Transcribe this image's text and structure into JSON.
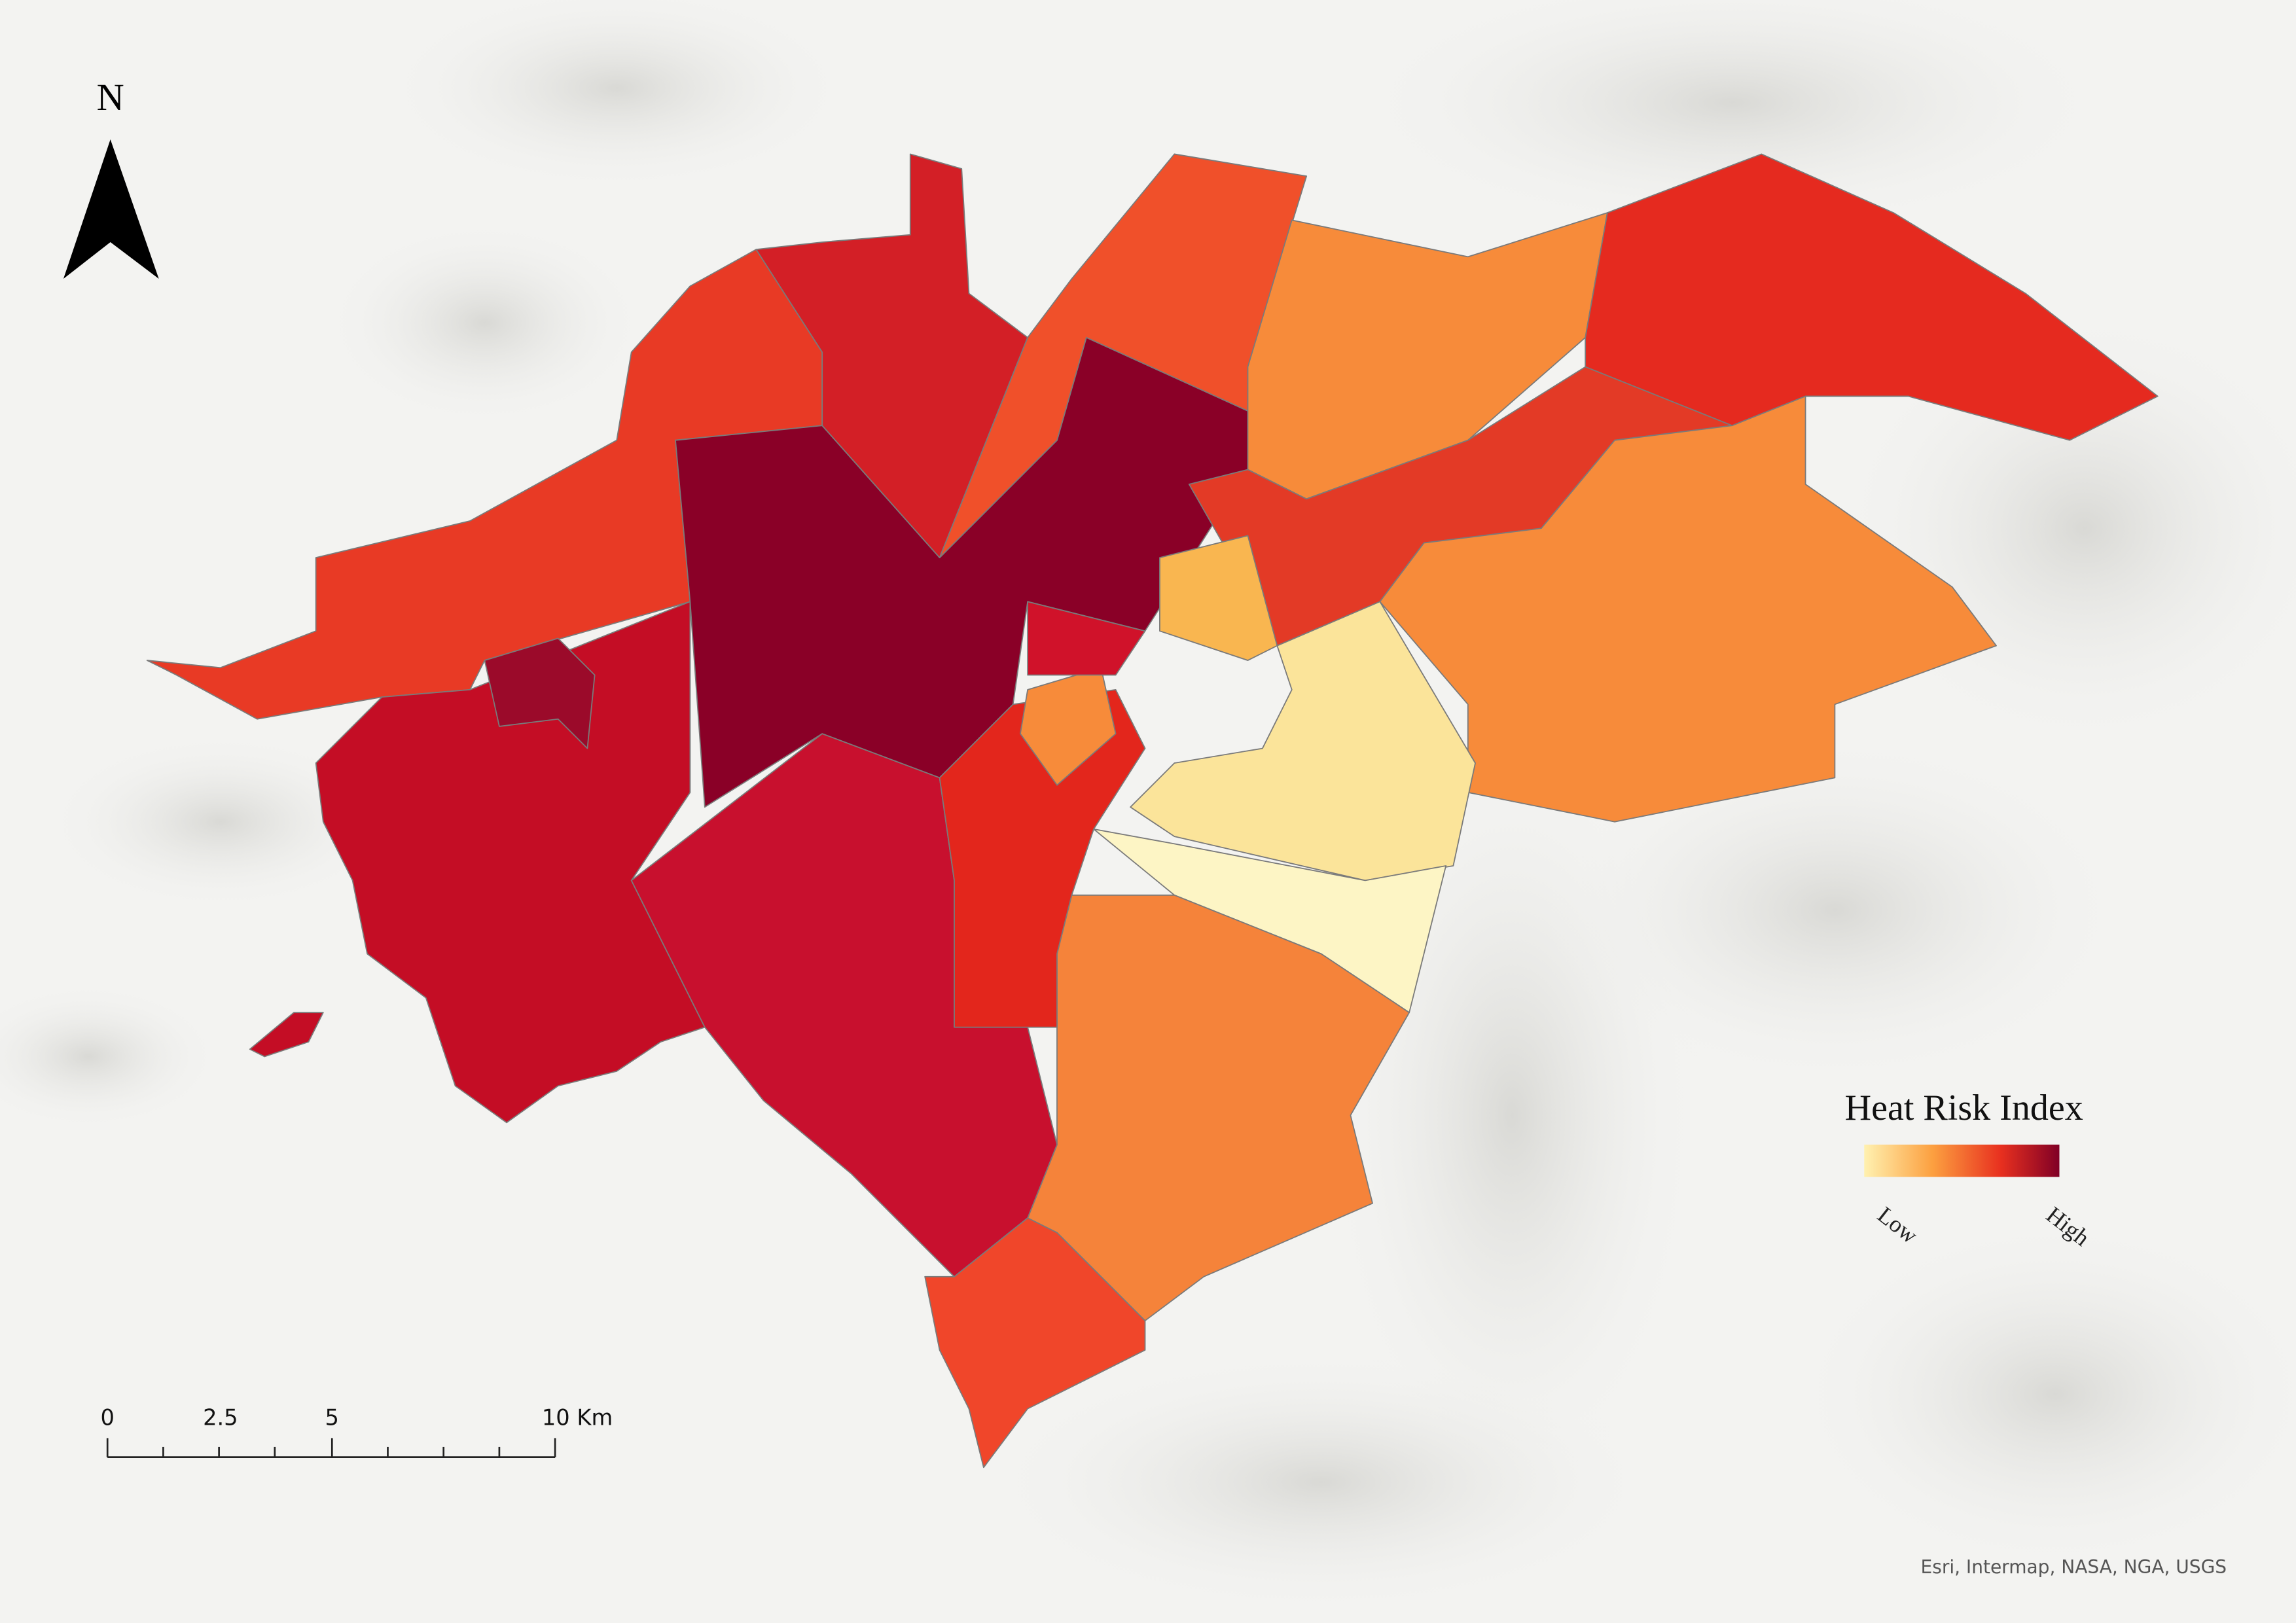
{
  "north_arrow": {
    "label": "N"
  },
  "legend": {
    "title": "Heat Risk Index",
    "low_label": "Low",
    "high_label": "High"
  },
  "scale_bar": {
    "labels": [
      "0",
      "2.5",
      "5",
      "10 Km"
    ]
  },
  "attribution": "Esri, Intermap, NASA, NGA, USGS"
}
